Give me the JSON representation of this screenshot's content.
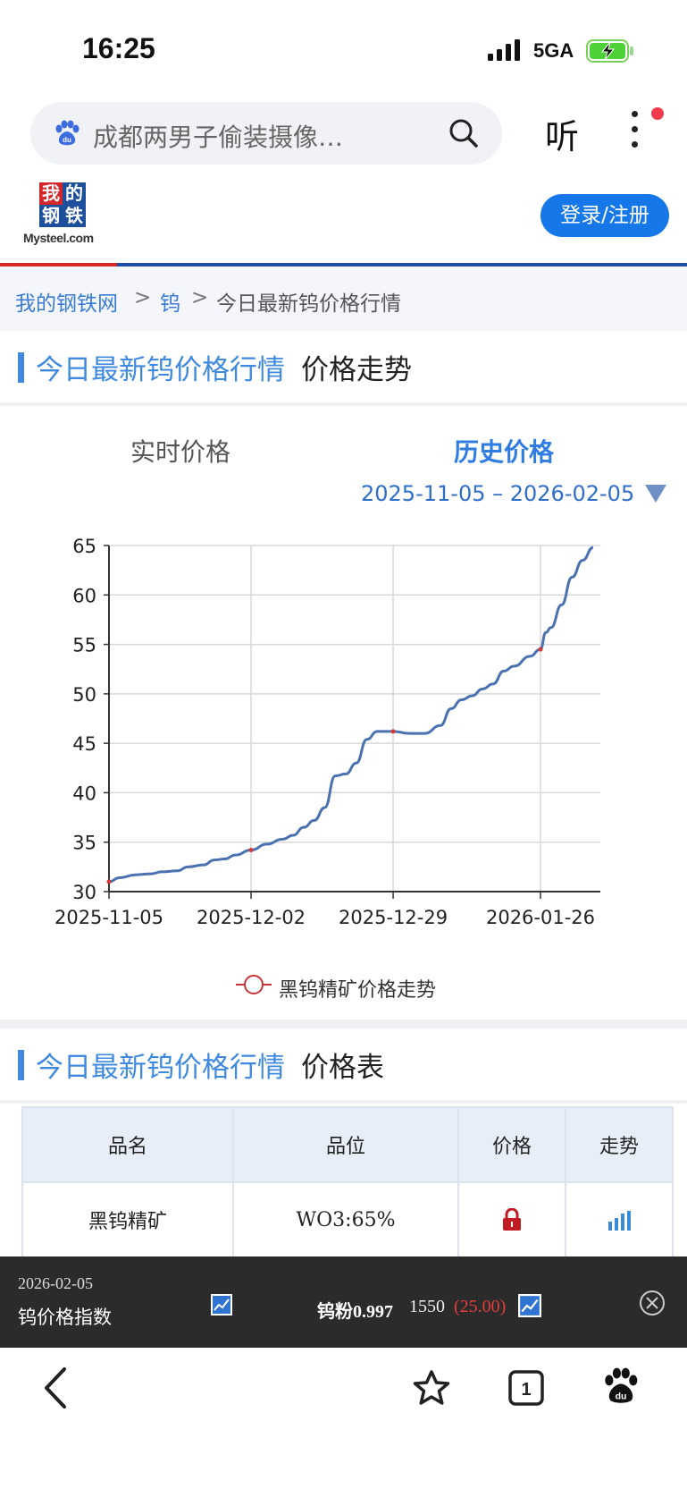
{
  "status_bar": {
    "time": "16:25",
    "network": "5GA"
  },
  "search": {
    "query": "成都两男子偷装摄像…",
    "icon": "baidu-paw-icon"
  },
  "top_actions": {
    "listen_label": "听"
  },
  "site": {
    "logo_chars": [
      "我",
      "的",
      "钢",
      "铁"
    ],
    "logo_text": "Mysteel.com",
    "login_label": "登录/注册"
  },
  "breadcrumb": {
    "home": "我的钢铁网",
    "sep": ">",
    "category": "钨",
    "current": "今日最新钨价格行情"
  },
  "trend_section": {
    "title_highlight": "今日最新钨价格行情",
    "title_rest": "价格走势"
  },
  "tabs": {
    "realtime": "实时价格",
    "history": "历史价格"
  },
  "date_range": "2025-11-05 – 2026-02-05",
  "chart_data": {
    "type": "line",
    "title": "",
    "xlabel": "",
    "ylabel": "",
    "ylim": [
      30,
      65
    ],
    "yticks": [
      30,
      35,
      40,
      45,
      50,
      55,
      60,
      65
    ],
    "xticks": [
      "2025-11-05",
      "2025-12-02",
      "2025-12-29",
      "2026-01-26"
    ],
    "grid": true,
    "legend_position": "bottom",
    "series": [
      {
        "name": "黑钨精矿价格走势",
        "points": [
          [
            "2025-11-05",
            31.0
          ],
          [
            "2025-11-07",
            31.4
          ],
          [
            "2025-11-10",
            31.7
          ],
          [
            "2025-11-13",
            31.8
          ],
          [
            "2025-11-15",
            32.0
          ],
          [
            "2025-11-18",
            32.1
          ],
          [
            "2025-11-20",
            32.5
          ],
          [
            "2025-11-23",
            32.7
          ],
          [
            "2025-11-25",
            33.2
          ],
          [
            "2025-11-27",
            33.3
          ],
          [
            "2025-11-29",
            33.7
          ],
          [
            "2025-12-02",
            34.2
          ],
          [
            "2025-12-05",
            34.8
          ],
          [
            "2025-12-08",
            35.3
          ],
          [
            "2025-12-10",
            35.7
          ],
          [
            "2025-12-12",
            36.5
          ],
          [
            "2025-12-14",
            37.2
          ],
          [
            "2025-12-16",
            38.5
          ],
          [
            "2025-12-18",
            41.7
          ],
          [
            "2025-12-20",
            41.9
          ],
          [
            "2025-12-22",
            43.0
          ],
          [
            "2025-12-24",
            45.4
          ],
          [
            "2025-12-26",
            46.2
          ],
          [
            "2025-12-29",
            46.2
          ],
          [
            "2026-01-01",
            46.0
          ],
          [
            "2026-01-04",
            46.0
          ],
          [
            "2026-01-07",
            46.8
          ],
          [
            "2026-01-09",
            48.5
          ],
          [
            "2026-01-11",
            49.4
          ],
          [
            "2026-01-13",
            49.8
          ],
          [
            "2026-01-15",
            50.5
          ],
          [
            "2026-01-17",
            51.0
          ],
          [
            "2026-01-19",
            52.3
          ],
          [
            "2026-01-21",
            52.8
          ],
          [
            "2026-01-24",
            53.8
          ],
          [
            "2026-01-26",
            54.5
          ],
          [
            "2026-01-27",
            56.2
          ],
          [
            "2026-01-28",
            56.7
          ],
          [
            "2026-01-30",
            59.0
          ],
          [
            "2026-02-01",
            61.8
          ],
          [
            "2026-02-03",
            63.5
          ],
          [
            "2026-02-05",
            64.8
          ]
        ]
      }
    ]
  },
  "table_section": {
    "title_highlight": "今日最新钨价格行情",
    "title_rest": "价格表"
  },
  "price_table": {
    "headers": [
      "品名",
      "品位",
      "价格",
      "走势"
    ],
    "rows": [
      {
        "name": "黑钨精矿",
        "grade": "WO3:65%",
        "price_icon": "lock-icon",
        "trend_icon": "bar-chart-icon"
      }
    ]
  },
  "ticker": {
    "date": "2026-02-05",
    "name": "钨价格指数",
    "item": "钨粉0.997",
    "price": "1550",
    "change": "(25.00)",
    "change_color": "#e23c3c"
  },
  "colors": {
    "accent": "#3f8ae0",
    "line": "#4a72b0",
    "brand_red": "#d62a2a"
  }
}
